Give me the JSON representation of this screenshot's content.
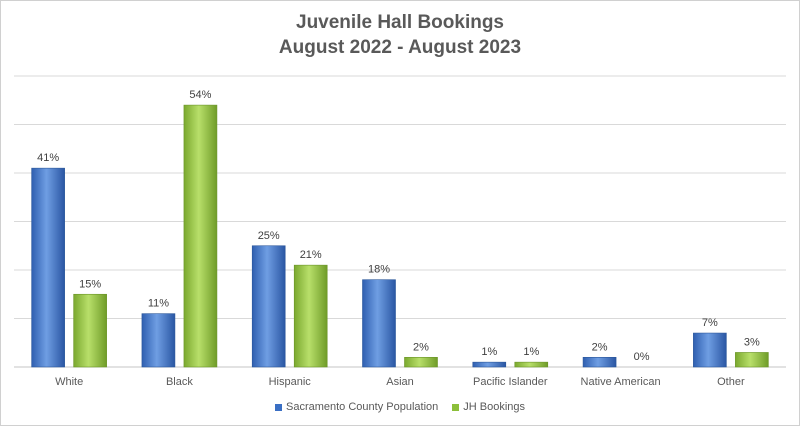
{
  "chart_data": {
    "type": "bar",
    "title": "Juvenile Hall Bookings",
    "subtitle": "August 2022 - August 2023",
    "categories": [
      "White",
      "Black",
      "Hispanic",
      "Asian",
      "Pacific Islander",
      "Native American",
      "Other"
    ],
    "series": [
      {
        "name": "Sacramento County Population",
        "values": [
          41,
          11,
          25,
          18,
          1,
          2,
          7
        ],
        "labels": [
          "41%",
          "11%",
          "25%",
          "18%",
          "1%",
          "2%",
          "7%"
        ],
        "color": "#4a7fd0"
      },
      {
        "name": "JH Bookings",
        "values": [
          15,
          54,
          21,
          2,
          1,
          0,
          3
        ],
        "labels": [
          "15%",
          "54%",
          "21%",
          "2%",
          "1%",
          "0%",
          "3%"
        ],
        "color": "#9bc945"
      }
    ],
    "ylim": [
      0,
      60
    ],
    "grid": true,
    "legend": "bottom"
  }
}
